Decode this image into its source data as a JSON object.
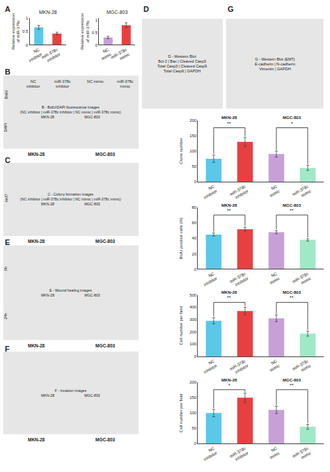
{
  "chart_data": [
    {
      "type": "bar",
      "title": "MKN-28",
      "categories": [
        "NC\ninhibitor",
        "miR-378c\ninhibitor"
      ],
      "values": [
        0.65,
        0.42
      ],
      "errors": [
        0.07,
        0.05
      ],
      "colors": [
        "#5bc8e8",
        "#e84040"
      ],
      "ylabel": "Relative expression\nof miR-378c",
      "ylim": [
        0,
        1.0
      ],
      "yticks": [
        0,
        0.5,
        1
      ],
      "grid": false
    },
    {
      "type": "bar",
      "title": "MGC-803",
      "categories": [
        "NC\nmimic",
        "miR-378c\nmimic"
      ],
      "values": [
        0.3,
        0.8
      ],
      "errors": [
        0.05,
        0.1
      ],
      "colors": [
        "#c8a0d8",
        "#e84040"
      ],
      "ylabel": "Relative expression\nof miR-378c",
      "ylim": [
        0,
        1.1
      ],
      "yticks": [
        0,
        0.5,
        1
      ],
      "grid": false
    },
    {
      "type": "bar",
      "categories": [
        "NC\ninhibitor",
        "miR-378c\ninhibitor",
        "NC\nmimic",
        "miR-378c\nmimic"
      ],
      "values": [
        75,
        130,
        90,
        45
      ],
      "errors": [
        12,
        15,
        10,
        8
      ],
      "colors": [
        "#5bc8e8",
        "#e84040",
        "#c8a0d8",
        "#a0e8c8"
      ],
      "ylabel": "Clone number",
      "ylim": [
        0,
        200
      ],
      "yticks": [
        0,
        50,
        100,
        150,
        200
      ],
      "grid": false,
      "annotations": [
        "MKN-28",
        "**",
        "MGC-803",
        "*"
      ]
    },
    {
      "type": "bar",
      "categories": [
        "NC\ninhibitor",
        "miR-378c\ninhibitor",
        "NC\nmimic",
        "miR-378c\nmimic"
      ],
      "values": [
        45,
        52,
        48,
        38
      ],
      "errors": [
        2,
        2.5,
        2,
        1.5
      ],
      "colors": [
        "#5bc8e8",
        "#e84040",
        "#c8a0d8",
        "#a0e8c8"
      ],
      "ylabel": "BrdU positive cells (%)",
      "ylim": [
        0,
        80
      ],
      "yticks": [
        0,
        20,
        40,
        60,
        80
      ],
      "grid": false,
      "annotations": [
        "MKN-28",
        "**",
        "MGC-803",
        "**"
      ]
    },
    {
      "type": "bar",
      "categories": [
        "NC\ninhibitor",
        "miR-378c\ninhibitor",
        "NC\nmimic",
        "miR-378c\nmimic"
      ],
      "values": [
        290,
        370,
        310,
        185
      ],
      "errors": [
        25,
        30,
        28,
        20
      ],
      "colors": [
        "#5bc8e8",
        "#e84040",
        "#c8a0d8",
        "#a0e8c8"
      ],
      "ylabel": "Cell number per field",
      "ylim": [
        0,
        500
      ],
      "yticks": [
        0,
        100,
        200,
        300,
        400,
        500
      ],
      "grid": false,
      "annotations": [
        "MKN-28",
        "**",
        "MGC-803",
        "**"
      ]
    },
    {
      "type": "bar",
      "categories": [
        "NC\ninhibitor",
        "miR-378c\ninhibitor",
        "NC\nmimic",
        "miR-378c\nmimic"
      ],
      "values": [
        100,
        150,
        110,
        55
      ],
      "errors": [
        12,
        15,
        12,
        8
      ],
      "colors": [
        "#5bc8e8",
        "#e84040",
        "#c8a0d8",
        "#a0e8c8"
      ],
      "ylabel": "Cell number per field",
      "ylim": [
        0,
        200
      ],
      "yticks": [
        0,
        50,
        100,
        150,
        200
      ],
      "grid": false,
      "annotations": [
        "MKN-28",
        "*",
        "MGC-803",
        "**"
      ]
    }
  ],
  "annotations": [
    "A",
    "D",
    "G",
    "B",
    "C",
    "E",
    "F",
    "B - BrdU/DAPI fluorescence images\n(NC inhibitor | miR-378c inhibitor | NC mimic | miR-378c mimic)\nMKN-28                              MGC-803",
    "C - Colony formation images\n(NC inhibitor | miR-378c inhibitor | NC mimic | miR-378c mimic)\nMKN-28                              MGC-803",
    "E - Wound healing images\nMKN-28                              MGC-803",
    "F - Invasion images\nMKN-28                              MGC-803",
    "D - Western Blot\nBcl-2 | Bax | Cleaved Casp3\nTotal Casp3 | Cleaved Casp9\nTotal Casp9 | GAPDH",
    "G - Western Blot (EMT)\nE-cadherin | N-cadherin\nVimentin | GAPDH",
    "BrdU",
    "DAPI",
    "mcf7",
    "0h",
    "24h",
    "NC\ninhibitor",
    "miR-378c\ninhibitor",
    "NC mimic",
    "miR-378c\nmimic",
    "MKN-28",
    "MGC-803",
    "MKN-28",
    "MGC-803",
    "MKN-28",
    "MGC-803",
    "MKN-28",
    "MGC-803"
  ]
}
